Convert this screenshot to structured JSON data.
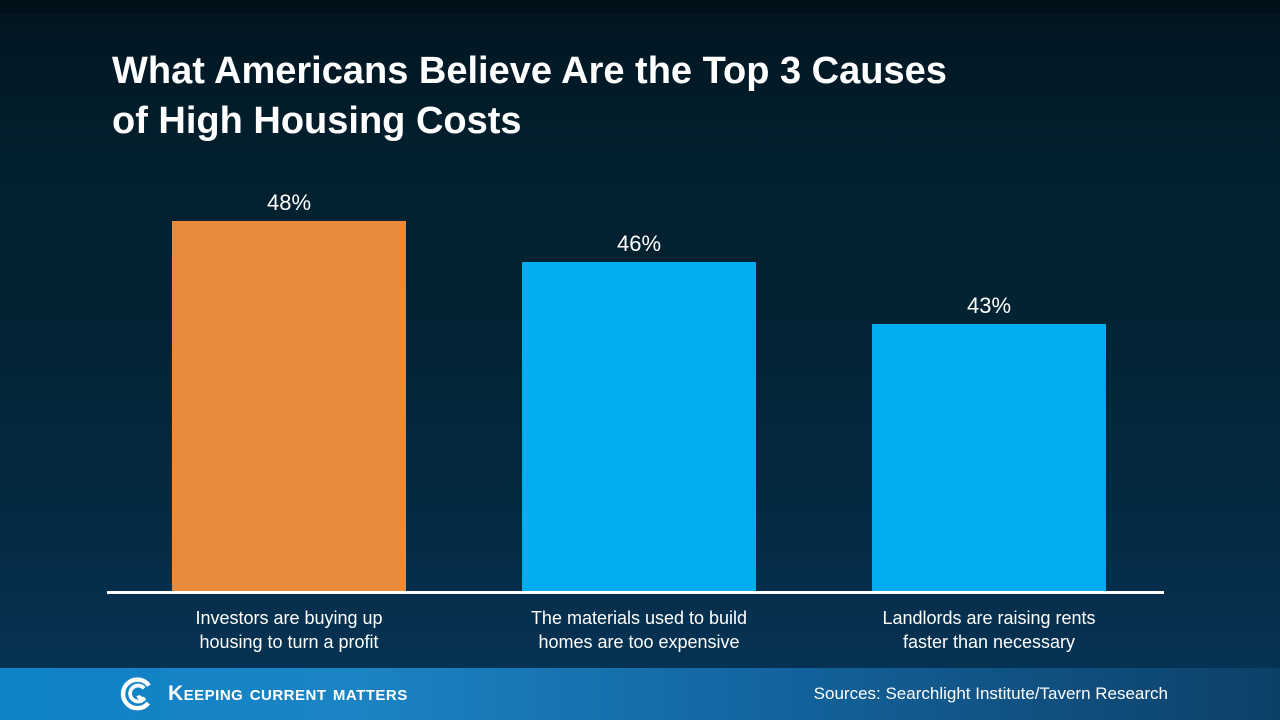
{
  "header": {
    "title_line1": "What Americans Believe Are the Top 3 Causes",
    "title_line2": "of High Housing Costs"
  },
  "chart_data": {
    "type": "bar",
    "title": "What Americans Believe Are the Top 3 Causes of High Housing Costs",
    "categories": [
      "Investors are buying up housing to turn a profit",
      "The materials used to build homes are too expensive",
      "Landlords are raising rents faster than necessary"
    ],
    "categories_lines": [
      [
        "Investors are buying up",
        "housing to turn a profit"
      ],
      [
        "The materials used to build",
        "homes are too expensive"
      ],
      [
        "Landlords are raising rents",
        "faster than necessary"
      ]
    ],
    "values": [
      48,
      46,
      43
    ],
    "value_labels": [
      "48%",
      "46%",
      "43%"
    ],
    "bar_colors": [
      "#E98B3C",
      "#00AEEF",
      "#00AEEF"
    ],
    "ylim": [
      30,
      55
    ],
    "xlabel": "",
    "ylabel": "",
    "grid": false,
    "legend": false,
    "y_axis_ticks_visible": false,
    "baseline_color": "#FFFFFF"
  },
  "footer": {
    "brand": "Keeping Current Matters",
    "brand_icon": "kcm-swirl-logo",
    "sources": "Sources: Searchlight Institute/Tavern Research",
    "bar_gradient_left": "#0F82C8",
    "bar_gradient_right": "#0D4067"
  },
  "colors": {
    "background_top": "#021420",
    "background_bottom": "#063150",
    "title_text": "#FFFFFF",
    "bar_orange": "#E98B3C",
    "bar_blue": "#00AEEF",
    "axis_line": "#FFFFFF"
  }
}
